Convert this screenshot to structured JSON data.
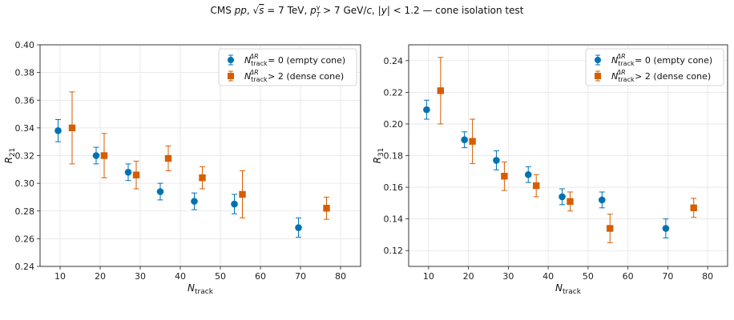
{
  "suptitle": {
    "pre": "CMS ",
    "pp": "pp",
    "sqrt": ", √",
    "s": "s",
    "energy": " = 7 TeV, ",
    "p": "p",
    "pt_sub": "T",
    "pt_sup": "γ",
    "pt_cut": " > 7 GeV/",
    "c": "c",
    "y_pre": ", |",
    "y": "y",
    "y_post": "| < 1.2 — cone isolation test"
  },
  "chart_data": [
    {
      "type": "scatter",
      "xlabel_main": "N",
      "xlabel_sub": "track",
      "ylabel_main": "R",
      "ylabel_sub": "21",
      "xlim": [
        5,
        85
      ],
      "ylim": [
        0.24,
        0.4
      ],
      "xticks": [
        "10",
        "20",
        "30",
        "40",
        "50",
        "60",
        "70",
        "80"
      ],
      "yticks": [
        "0.24",
        "0.26",
        "0.28",
        "0.30",
        "0.32",
        "0.34",
        "0.36",
        "0.38",
        "0.40"
      ],
      "grid": true,
      "legend": "upper right",
      "series": [
        {
          "legend_N": "N",
          "legend_sub": "track",
          "legend_sup": "ΔR",
          "legend_rest": " = 0 (empty cone)",
          "color": "#0072b2",
          "marker": "circle",
          "x": [
            9.5,
            19.0,
            27.0,
            35.0,
            43.5,
            53.5,
            69.5
          ],
          "y": [
            0.338,
            0.32,
            0.308,
            0.294,
            0.287,
            0.285,
            0.268
          ],
          "err": [
            0.008,
            0.006,
            0.006,
            0.006,
            0.006,
            0.007,
            0.007
          ]
        },
        {
          "legend_N": "N",
          "legend_sub": "track",
          "legend_sup": "ΔR",
          "legend_rest": " > 2 (dense cone)",
          "color": "#d55e00",
          "marker": "square",
          "x": [
            13.0,
            21.0,
            29.0,
            37.0,
            45.5,
            55.5,
            76.5
          ],
          "y": [
            0.34,
            0.32,
            0.306,
            0.318,
            0.304,
            0.292,
            0.282
          ],
          "err": [
            0.026,
            0.016,
            0.01,
            0.009,
            0.008,
            0.017,
            0.008
          ]
        }
      ]
    },
    {
      "type": "scatter",
      "xlabel_main": "N",
      "xlabel_sub": "track",
      "ylabel_main": "R",
      "ylabel_sub": "31",
      "xlim": [
        5,
        85
      ],
      "ylim": [
        0.11,
        0.25
      ],
      "xticks": [
        "10",
        "20",
        "30",
        "40",
        "50",
        "60",
        "70",
        "80"
      ],
      "yticks": [
        "0.12",
        "0.14",
        "0.16",
        "0.18",
        "0.20",
        "0.22",
        "0.24"
      ],
      "grid": true,
      "legend": "upper right",
      "series": [
        {
          "legend_N": "N",
          "legend_sub": "track",
          "legend_sup": "ΔR",
          "legend_rest": " = 0 (empty cone)",
          "color": "#0072b2",
          "marker": "circle",
          "x": [
            9.5,
            19.0,
            27.0,
            35.0,
            43.5,
            53.5,
            69.5
          ],
          "y": [
            0.209,
            0.19,
            0.177,
            0.168,
            0.154,
            0.152,
            0.134
          ],
          "err": [
            0.006,
            0.005,
            0.006,
            0.005,
            0.005,
            0.005,
            0.006
          ]
        },
        {
          "legend_N": "N",
          "legend_sub": "track",
          "legend_sup": "ΔR",
          "legend_rest": " > 2 (dense cone)",
          "color": "#d55e00",
          "marker": "square",
          "x": [
            13.0,
            21.0,
            29.0,
            37.0,
            45.5,
            55.5,
            76.5
          ],
          "y": [
            0.221,
            0.189,
            0.167,
            0.161,
            0.151,
            0.134,
            0.147
          ],
          "err": [
            0.021,
            0.014,
            0.009,
            0.007,
            0.006,
            0.009,
            0.006
          ]
        }
      ]
    }
  ]
}
